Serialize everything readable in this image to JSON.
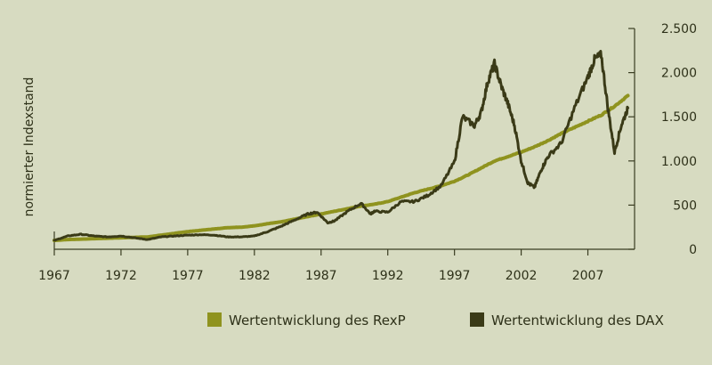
{
  "chart_data": {
    "type": "line",
    "ylabel": "normierter Indexstand",
    "xlim": [
      1967,
      2010.5
    ],
    "ylim": [
      0,
      2500
    ],
    "x_ticks": [
      1967,
      1972,
      1977,
      1982,
      1987,
      1992,
      1997,
      2002,
      2007
    ],
    "x_tick_labels": [
      "1967",
      "1972",
      "1977",
      "1982",
      "1987",
      "1992",
      "1997",
      "2002",
      "2007"
    ],
    "y_ticks": [
      0,
      500,
      1000,
      1500,
      2000,
      2500
    ],
    "y_tick_labels": [
      "0",
      "500",
      "1.000",
      "1.500",
      "2.000",
      "2.500"
    ],
    "y_axis_side": "right",
    "grid": false,
    "legend_placement": "bottom-right",
    "series": [
      {
        "name": "Wertentwicklung des RexP",
        "color": "#8f931f",
        "x": [
          1967,
          1968,
          1970,
          1972,
          1974,
          1975,
          1976,
          1977,
          1978,
          1979,
          1980,
          1981,
          1982,
          1983,
          1984,
          1985,
          1986,
          1987,
          1988,
          1989,
          1990,
          1991,
          1992,
          1993,
          1994,
          1995,
          1996,
          1997,
          1998,
          1999,
          2000,
          2001,
          2002,
          2003,
          2004,
          2005,
          2006,
          2007,
          2008,
          2009,
          2010
        ],
        "y": [
          100,
          110,
          120,
          130,
          140,
          160,
          180,
          200,
          215,
          230,
          245,
          250,
          265,
          290,
          310,
          340,
          370,
          400,
          430,
          460,
          490,
          510,
          540,
          590,
          640,
          680,
          720,
          770,
          840,
          920,
          1000,
          1050,
          1100,
          1160,
          1230,
          1310,
          1380,
          1450,
          1520,
          1620,
          1740
        ]
      },
      {
        "name": "Wertentwicklung des DAX",
        "color": "#3a3a17",
        "x": [
          1967,
          1968,
          1969,
          1970,
          1971,
          1972,
          1973,
          1974,
          1975,
          1976,
          1977,
          1978,
          1979,
          1980,
          1981,
          1982,
          1983,
          1984,
          1985,
          1986,
          1986.7,
          1987.5,
          1988,
          1989,
          1990,
          1990.7,
          1991,
          1992,
          1993,
          1994,
          1995,
          1996,
          1997,
          1997.6,
          1998.5,
          1999,
          1999.5,
          2000,
          2000.5,
          2001,
          2001.5,
          2002,
          2002.5,
          2003,
          2003.5,
          2004,
          2005,
          2006,
          2007,
          2007.5,
          2008,
          2008.5,
          2009,
          2009.5,
          2010
        ],
        "y": [
          100,
          150,
          170,
          150,
          140,
          150,
          130,
          110,
          140,
          150,
          160,
          165,
          160,
          140,
          140,
          150,
          200,
          260,
          330,
          400,
          420,
          300,
          320,
          430,
          520,
          400,
          430,
          420,
          540,
          540,
          610,
          720,
          990,
          1500,
          1400,
          1550,
          1900,
          2100,
          1850,
          1650,
          1400,
          1000,
          750,
          700,
          900,
          1050,
          1200,
          1600,
          1950,
          2150,
          2200,
          1600,
          1100,
          1400,
          1600
        ]
      }
    ]
  }
}
